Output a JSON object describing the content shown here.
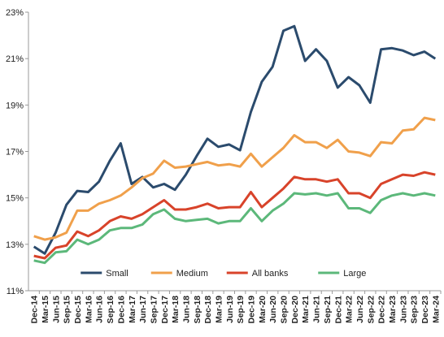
{
  "chart_data": {
    "type": "line",
    "x": [
      "Dec-14",
      "Mar-15",
      "Jun-15",
      "Sep-15",
      "Dec-15",
      "Mar-16",
      "Jun-16",
      "Sep-16",
      "Dec-16",
      "Mar-17",
      "Jun-17",
      "Sep-17",
      "Dec-17",
      "Mar-18",
      "Jun-18",
      "Sep-18",
      "Dec-18",
      "Mar-19",
      "Jun-19",
      "Sep-19",
      "Dec-19",
      "Mar-20",
      "Jun-20",
      "Sep-20",
      "Dec-20",
      "Mar-21",
      "Jun-21",
      "Sep-21",
      "Dec-21",
      "Mar-22",
      "Jun-22",
      "Sep-22",
      "Dec-22",
      "Mar-23",
      "Jun-23",
      "Sep-23",
      "Dec-23",
      "Mar-24"
    ],
    "series": [
      {
        "name": "Small",
        "color": "#2b4b6d",
        "values": [
          12.9,
          12.6,
          13.5,
          14.7,
          15.3,
          15.25,
          15.7,
          16.6,
          17.35,
          15.6,
          15.9,
          15.45,
          15.6,
          15.35,
          16.0,
          16.8,
          17.55,
          17.2,
          17.3,
          17.05,
          18.7,
          20.0,
          20.65,
          22.2,
          22.4,
          20.9,
          21.4,
          20.9,
          19.75,
          20.2,
          19.85,
          19.1,
          21.4,
          21.45,
          21.35,
          21.15,
          21.3,
          21.0
        ]
      },
      {
        "name": "Medium",
        "color": "#f0a04b",
        "values": [
          13.35,
          13.2,
          13.3,
          13.5,
          14.45,
          14.45,
          14.75,
          14.9,
          15.1,
          15.45,
          15.85,
          16.05,
          16.6,
          16.3,
          16.35,
          16.45,
          16.55,
          16.4,
          16.45,
          16.35,
          16.9,
          16.35,
          16.75,
          17.15,
          17.7,
          17.4,
          17.4,
          17.15,
          17.5,
          17.0,
          16.95,
          16.8,
          17.4,
          17.35,
          17.9,
          17.95,
          18.45,
          18.35
        ]
      },
      {
        "name": "All banks",
        "color": "#d8432a",
        "values": [
          12.5,
          12.4,
          12.85,
          12.95,
          13.55,
          13.35,
          13.6,
          14.0,
          14.2,
          14.1,
          14.3,
          14.6,
          14.9,
          14.5,
          14.5,
          14.6,
          14.75,
          14.55,
          14.6,
          14.6,
          15.25,
          14.6,
          15.0,
          15.4,
          15.9,
          15.8,
          15.8,
          15.7,
          15.8,
          15.2,
          15.2,
          15.0,
          15.6,
          15.8,
          16.0,
          15.95,
          16.1,
          16.0
        ]
      },
      {
        "name": "Large",
        "color": "#5cb87a",
        "values": [
          12.3,
          12.2,
          12.65,
          12.7,
          13.2,
          13.0,
          13.2,
          13.6,
          13.7,
          13.7,
          13.85,
          14.3,
          14.5,
          14.1,
          14.0,
          14.05,
          14.1,
          13.9,
          14.0,
          14.0,
          14.55,
          14.0,
          14.45,
          14.75,
          15.2,
          15.15,
          15.2,
          15.1,
          15.2,
          14.55,
          14.55,
          14.35,
          14.9,
          15.1,
          15.2,
          15.1,
          15.2,
          15.1
        ]
      }
    ],
    "ylim": [
      11,
      23
    ],
    "yticks": [
      {
        "value": 11,
        "label": "11%"
      },
      {
        "value": 13,
        "label": "13%"
      },
      {
        "value": 15,
        "label": "15%"
      },
      {
        "value": 17,
        "label": "17%"
      },
      {
        "value": 19,
        "label": "19%"
      },
      {
        "value": 21,
        "label": "21%"
      },
      {
        "value": 23,
        "label": "23%"
      }
    ],
    "grid": false,
    "legend": "bottom"
  }
}
